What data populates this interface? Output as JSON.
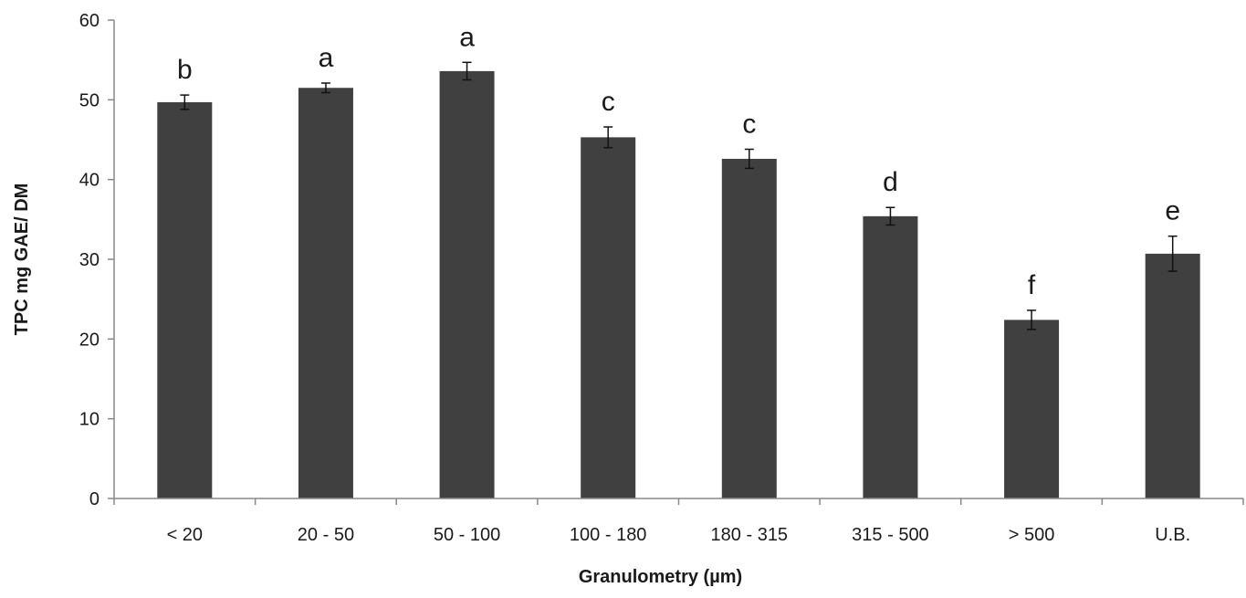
{
  "chart_data": {
    "type": "bar",
    "title": "",
    "xlabel": "Granulometry (µm)",
    "ylabel": "TPC mg GAE/ DM",
    "ylim": [
      0,
      60
    ],
    "yticks": [
      "0",
      "10",
      "20",
      "30",
      "40",
      "50",
      "60"
    ],
    "categories": [
      "< 20",
      "20 - 50",
      "50 - 100",
      "100 - 180",
      "180 - 315",
      "315 - 500",
      "> 500",
      "U.B."
    ],
    "values": [
      49.7,
      51.5,
      53.6,
      45.3,
      42.6,
      35.4,
      22.4,
      30.7
    ],
    "errors": [
      0.9,
      0.6,
      1.1,
      1.3,
      1.2,
      1.1,
      1.2,
      2.2
    ],
    "significance_letters": [
      "b",
      "a",
      "a",
      "c",
      "c",
      "d",
      "f",
      "e"
    ],
    "bar_color": "#404040",
    "grid": false,
    "legend": "none"
  }
}
